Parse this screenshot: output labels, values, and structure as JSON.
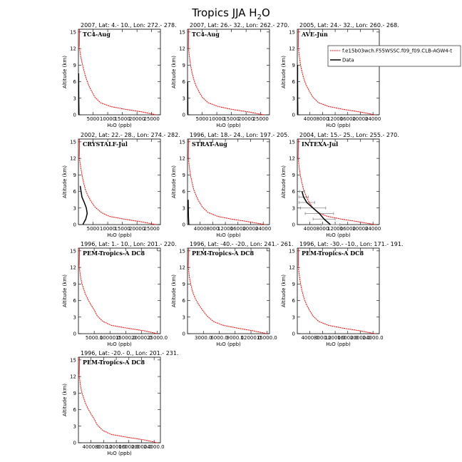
{
  "figure": {
    "title": "Tropics JJA H",
    "title_sub": "2",
    "title_tail": "O"
  },
  "legend": {
    "model_label": "f.e15b03wch.F55WSSC.f09_f09.CLB-AGW4-t",
    "data_label": "Data",
    "model_color": "#ff0000",
    "data_color": "#000000"
  },
  "colors": {
    "model": "#ff0000",
    "data": "#000000",
    "error_bar": "#888888"
  },
  "chart_data": [
    {
      "type": "line",
      "header": "2007, Lat: 4.- 10., Lon: 272.- 278.",
      "experiment": "TC4-Aug",
      "xlabel": "H₂O (ppb)",
      "ylabel": "Altitude (km)",
      "xlim": [
        0,
        28000
      ],
      "ylim": [
        0,
        15.5
      ],
      "xticks": [
        5000,
        10000,
        15000,
        20000,
        25000
      ],
      "xtick_labels": [
        "5000",
        "10000",
        "15000",
        "20000",
        "25000"
      ],
      "yticks": [
        0,
        3,
        6,
        9,
        12,
        15
      ],
      "series": [
        {
          "role": "model",
          "x": [
            26500,
            22000,
            16000,
            11000,
            7500,
            5600,
            4500,
            3600,
            2900,
            2300,
            1800,
            1300,
            800,
            300
          ],
          "y": [
            0,
            0.5,
            1,
            1.5,
            2.2,
            3.2,
            4.3,
            5.2,
            6.2,
            7.2,
            8.2,
            9.3,
            10.5,
            12.3
          ]
        },
        {
          "role": "data",
          "x": [
            200,
            150,
            120,
            100,
            100,
            80
          ],
          "y": [
            0,
            1.5,
            3,
            4.5,
            6,
            7.5
          ]
        }
      ]
    },
    {
      "type": "line",
      "header": "2007, Lat: 26.- 32., Lon: 262.- 270.",
      "experiment": "TC4-Aug",
      "xlabel": "H₂O (ppb)",
      "ylabel": "Altitude (km)",
      "xlim": [
        0,
        28000
      ],
      "ylim": [
        0,
        15.5
      ],
      "xticks": [
        5000,
        10000,
        15000,
        20000,
        25000
      ],
      "xtick_labels": [
        "5000",
        "10000",
        "15000",
        "20000",
        "25000"
      ],
      "yticks": [
        0,
        3,
        6,
        9,
        12,
        15
      ],
      "series": [
        {
          "role": "model",
          "x": [
            26000,
            21000,
            15000,
            10500,
            7000,
            5000,
            3800,
            2900,
            2200,
            1600,
            1100,
            700,
            300
          ],
          "y": [
            0,
            0.5,
            1,
            1.5,
            2.2,
            3.2,
            4.3,
            5.3,
            6.3,
            7.5,
            8.8,
            10.3,
            12.2
          ]
        },
        {
          "role": "data",
          "x": [
            120,
            100,
            90,
            80,
            70
          ],
          "y": [
            0,
            1.5,
            3,
            4.5,
            6
          ]
        }
      ]
    },
    {
      "type": "line",
      "header": "2005, Lat: 24.- 32., Lon: 260.- 268.",
      "experiment": "AVE-Jun",
      "xlabel": "H₂O (ppb)",
      "ylabel": "Altitude (km)",
      "xlim": [
        0,
        26000
      ],
      "ylim": [
        0,
        15.5
      ],
      "xticks": [
        4000,
        8000,
        12000,
        16000,
        20000,
        24000
      ],
      "xtick_labels": [
        "4000",
        "8000",
        "12000",
        "16000",
        "20000",
        "24000"
      ],
      "yticks": [
        0,
        3,
        6,
        9,
        12,
        15
      ],
      "series": [
        {
          "role": "model",
          "x": [
            24500,
            20000,
            14500,
            10000,
            6700,
            4900,
            3800,
            2900,
            2200,
            1600,
            1100,
            700,
            300
          ],
          "y": [
            0,
            0.5,
            1,
            1.5,
            2.2,
            3.2,
            4.3,
            5.3,
            6.3,
            7.5,
            8.8,
            10.3,
            12.2
          ]
        },
        {
          "role": "data",
          "x": [
            150,
            130,
            120,
            110,
            100,
            90,
            90
          ],
          "y": [
            0,
            1.5,
            3,
            4.5,
            6,
            7.5,
            9
          ]
        }
      ]
    },
    {
      "type": "line",
      "header": "2002, Lat: 22.- 28., Lon: 274.- 282.",
      "experiment": "CRYSTALF-Jul",
      "xlabel": "H₂O (ppb)",
      "ylabel": "Altitude (km)",
      "xlim": [
        0,
        28000
      ],
      "ylim": [
        0,
        15.5
      ],
      "xticks": [
        5000,
        10000,
        15000,
        20000,
        25000
      ],
      "xtick_labels": [
        "5000",
        "10000",
        "15000",
        "20000",
        "25000"
      ],
      "yticks": [
        0,
        3,
        6,
        9,
        12,
        15
      ],
      "series": [
        {
          "role": "model",
          "x": [
            26500,
            21500,
            15500,
            10500,
            7800,
            5600,
            4200,
            3200,
            2400,
            1800,
            1300,
            800,
            300
          ],
          "y": [
            0,
            0.5,
            1,
            1.5,
            2.2,
            3.2,
            4.3,
            5.3,
            6.3,
            7.5,
            8.8,
            10.3,
            12.2
          ]
        },
        {
          "role": "data",
          "x": [
            1500,
            2500,
            3000,
            2700,
            2000,
            1200,
            900,
            600
          ],
          "y": [
            0,
            1,
            2,
            3,
            4,
            5,
            6,
            7
          ]
        }
      ]
    },
    {
      "type": "line",
      "header": "1996, Lat: 18.- 24., Lon: 197.- 205.",
      "experiment": "STRAT-Aug",
      "xlabel": "H₂O (ppb)",
      "ylabel": "Altitude (km)",
      "xlim": [
        0,
        26000
      ],
      "ylim": [
        0,
        15.5
      ],
      "xticks": [
        4000,
        8000,
        12000,
        16000,
        20000,
        24000
      ],
      "xtick_labels": [
        "4000",
        "8000",
        "12000",
        "16000",
        "20000",
        "24000"
      ],
      "yticks": [
        0,
        3,
        6,
        9,
        12,
        15
      ],
      "series": [
        {
          "role": "model",
          "x": [
            24500,
            19500,
            14000,
            9500,
            6500,
            4700,
            3500,
            2700,
            2000,
            1500,
            1000,
            600,
            250
          ],
          "y": [
            0,
            0.5,
            1,
            1.5,
            2.2,
            3.2,
            4.3,
            5.3,
            6.3,
            7.5,
            8.8,
            10.3,
            12.2
          ]
        },
        {
          "role": "data",
          "x": [
            400,
            300,
            250,
            200
          ],
          "y": [
            0,
            1.5,
            3,
            4.5
          ]
        }
      ]
    },
    {
      "type": "line",
      "header": "2004, Lat: 15.- 25., Lon: 255.- 270.",
      "experiment": "INTEXA-Jul",
      "xlabel": "H₂O (ppb)",
      "ylabel": "Altitude (km)",
      "xlim": [
        0,
        26000
      ],
      "ylim": [
        0,
        15.5
      ],
      "xticks": [
        4000,
        8000,
        12000,
        16000,
        20000,
        24000
      ],
      "xtick_labels": [
        "4000",
        "8000",
        "12000",
        "16000",
        "20000",
        "24000"
      ],
      "yticks": [
        0,
        3,
        6,
        9,
        12,
        15
      ],
      "series": [
        {
          "role": "model",
          "x": [
            24500,
            19500,
            14000,
            9500,
            6500,
            4700,
            3500,
            2700,
            2000,
            1500,
            1000,
            600,
            250
          ],
          "y": [
            0,
            0.5,
            1,
            1.5,
            2.2,
            3.2,
            4.3,
            5.3,
            6.3,
            7.5,
            8.8,
            10.3,
            12.2
          ]
        },
        {
          "role": "data",
          "x": [
            10500,
            8500,
            7000,
            5000,
            3000,
            2000,
            1500
          ],
          "y": [
            0,
            1,
            2,
            3,
            4,
            5,
            6
          ],
          "xerr": [
            3000,
            3500,
            4500,
            4000,
            2500,
            1500,
            800
          ]
        }
      ]
    },
    {
      "type": "line",
      "header": "1996, Lat: 1.- 10., Lon: 201.- 220.",
      "experiment": "PEM-Tropics-A DC8",
      "xlabel": "H₂O (ppb)",
      "ylabel": "Altitude (km)",
      "xlim": [
        0,
        26000
      ],
      "ylim": [
        0,
        15.5
      ],
      "xticks": [
        5000,
        10000,
        15000,
        20000,
        25000
      ],
      "xtick_labels": [
        "5000.0",
        "10000.0",
        "15000.0",
        "20000.0",
        "25000.0"
      ],
      "yticks": [
        0,
        3,
        6,
        9,
        12,
        15
      ],
      "series": [
        {
          "role": "model",
          "x": [
            25000,
            21000,
            15500,
            10500,
            7800,
            6000,
            5000,
            4000,
            3000,
            2200,
            1600,
            1000,
            600,
            250
          ],
          "y": [
            0,
            0.5,
            1,
            1.5,
            2.2,
            3.2,
            4.3,
            5.2,
            6.2,
            7.2,
            8.2,
            9.3,
            10.5,
            12.3
          ]
        }
      ]
    },
    {
      "type": "line",
      "header": "1996, Lat: -40.- -20., Lon: 241.- 261.",
      "experiment": "PEM-Tropics-A DC8",
      "xlabel": "H₂O (ppb)",
      "ylabel": "Altitude (km)",
      "xlim": [
        0,
        15500
      ],
      "ylim": [
        0,
        15.5
      ],
      "xticks": [
        3000,
        6000,
        9000,
        12000,
        15000
      ],
      "xtick_labels": [
        "3000.0",
        "6000.0",
        "9000.0",
        "12000.0",
        "15000.0"
      ],
      "yticks": [
        0,
        3,
        6,
        9,
        12,
        15
      ],
      "series": [
        {
          "role": "model",
          "x": [
            15000,
            12500,
            9500,
            6800,
            4900,
            3700,
            2800,
            2100,
            1500,
            1000,
            650,
            350,
            150
          ],
          "y": [
            0,
            0.5,
            1,
            1.5,
            2.2,
            3.2,
            4.3,
            5.3,
            6.3,
            7.5,
            8.8,
            10.3,
            12.2
          ]
        }
      ]
    },
    {
      "type": "line",
      "header": "1996, Lat: -30.- -10., Lon: 171.- 191.",
      "experiment": "PEM-Tropics-A DC8",
      "xlabel": "H₂O (ppb)",
      "ylabel": "Altitude (km)",
      "xlim": [
        0,
        26000
      ],
      "ylim": [
        0,
        15.5
      ],
      "xticks": [
        4000,
        8000,
        12000,
        16000,
        20000,
        24000
      ],
      "xtick_labels": [
        "4000.0",
        "8000.0",
        "12000.0",
        "16000.0",
        "20000.0",
        "24000.0"
      ],
      "yticks": [
        0,
        3,
        6,
        9,
        12,
        15
      ],
      "series": [
        {
          "role": "model",
          "x": [
            24500,
            20000,
            14500,
            10000,
            6800,
            5000,
            3800,
            2900,
            2200,
            1600,
            1100,
            700,
            300
          ],
          "y": [
            0,
            0.5,
            1,
            1.5,
            2.2,
            3.2,
            4.3,
            5.3,
            6.3,
            7.5,
            8.8,
            10.3,
            12.2
          ]
        }
      ]
    },
    {
      "type": "line",
      "header": "1996, Lat: -20.- 0., Lon: 201.- 231.",
      "experiment": "PEM-Tropics-A DC8",
      "xlabel": "H₂O (ppb)",
      "ylabel": "Altitude (km)",
      "xlim": [
        0,
        26000
      ],
      "ylim": [
        0,
        15.5
      ],
      "xticks": [
        4000,
        8000,
        12000,
        16000,
        20000,
        24000
      ],
      "xtick_labels": [
        "4000.0",
        "8000.0",
        "12000.0",
        "16000.0",
        "20000.0",
        "24000.0"
      ],
      "yticks": [
        0,
        3,
        6,
        9,
        12,
        15
      ],
      "series": [
        {
          "role": "model",
          "x": [
            25000,
            21000,
            15500,
            10500,
            7800,
            6000,
            5000,
            4000,
            3000,
            2200,
            1600,
            1000,
            600,
            250
          ],
          "y": [
            0,
            0.5,
            1,
            1.5,
            2.2,
            3.2,
            4.3,
            5.2,
            6.2,
            7.2,
            8.2,
            9.3,
            10.5,
            12.3
          ]
        }
      ]
    }
  ]
}
